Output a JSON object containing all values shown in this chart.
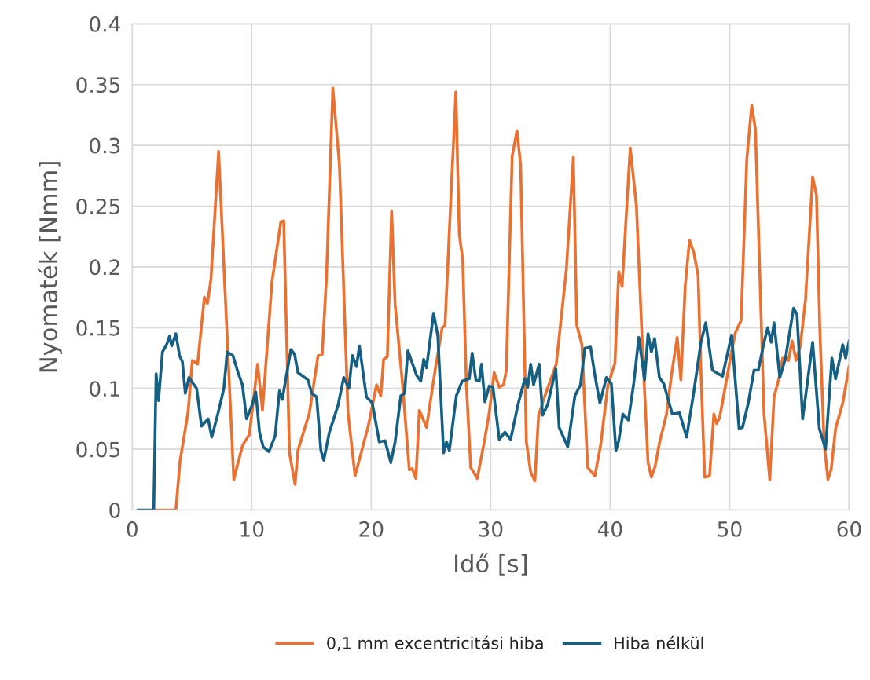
{
  "chart_data": {
    "type": "line",
    "xlabel": "Idő [s]",
    "ylabel": "Nyomaték [Nmm]",
    "xlim": [
      0,
      60
    ],
    "xticks": [
      0,
      10,
      20,
      30,
      40,
      50,
      60
    ],
    "ylim": [
      0,
      0.4
    ],
    "yticks": [
      0,
      0.05,
      0.1,
      0.15,
      0.2,
      0.25,
      0.3,
      0.35,
      0.4
    ],
    "grid": true,
    "legend": "bottom",
    "marker": "none",
    "line_style": "solid",
    "series": [
      {
        "name": "0,1 mm excentricitási hiba",
        "color": "#e97132",
        "x": [
          1.9,
          3.65,
          4.0,
          4.68,
          5.03,
          5.47,
          6.04,
          6.3,
          6.59,
          7.23,
          8.5,
          9.2,
          9.34,
          9.8,
          10.5,
          10.9,
          11.7,
          12.44,
          12.68,
          13.16,
          13.63,
          13.87,
          14.83,
          15.55,
          15.9,
          16.26,
          16.79,
          17.34,
          18.06,
          18.65,
          19.37,
          19.73,
          20.45,
          20.8,
          21.04,
          21.35,
          21.71,
          22.0,
          22.6,
          23.19,
          23.43,
          23.74,
          24.03,
          24.63,
          25.35,
          25.94,
          26.18,
          26.66,
          27.09,
          27.37,
          27.66,
          27.97,
          28.33,
          28.88,
          29.52,
          29.88,
          30.29,
          30.72,
          31.08,
          31.31,
          31.8,
          32.2,
          32.51,
          32.99,
          33.35,
          33.7,
          34.01,
          34.54,
          35.49,
          36.33,
          36.92,
          37.21,
          37.64,
          38.12,
          38.72,
          39.2,
          39.8,
          40.4,
          40.72,
          41.0,
          41.68,
          42.2,
          42.69,
          43.17,
          43.45,
          43.77,
          44.12,
          44.72,
          45.13,
          45.61,
          45.92,
          46.28,
          46.64,
          47.0,
          47.36,
          47.6,
          47.91,
          48.32,
          48.68,
          48.92,
          49.16,
          49.52,
          50.12,
          50.48,
          50.96,
          51.44,
          51.85,
          52.16,
          52.52,
          52.88,
          53.36,
          53.72,
          54.2,
          54.44,
          54.92,
          55.23,
          55.56,
          55.92,
          56.35,
          56.95,
          57.27,
          57.55,
          57.91,
          58.23,
          58.51,
          58.87,
          59.47,
          60.0
        ],
        "values": [
          0,
          0,
          0.04,
          0.081,
          0.123,
          0.12,
          0.175,
          0.17,
          0.19,
          0.295,
          0.025,
          0.052,
          0.055,
          0.062,
          0.12,
          0.082,
          0.188,
          0.237,
          0.238,
          0.047,
          0.021,
          0.049,
          0.08,
          0.127,
          0.128,
          0.192,
          0.347,
          0.284,
          0.08,
          0.028,
          0.055,
          0.068,
          0.103,
          0.094,
          0.124,
          0.126,
          0.246,
          0.169,
          0.106,
          0.033,
          0.034,
          0.026,
          0.082,
          0.068,
          0.115,
          0.15,
          0.152,
          0.255,
          0.344,
          0.227,
          0.206,
          0.103,
          0.035,
          0.026,
          0.059,
          0.08,
          0.113,
          0.101,
          0.103,
          0.115,
          0.291,
          0.312,
          0.284,
          0.056,
          0.031,
          0.024,
          0.078,
          0.094,
          0.12,
          0.197,
          0.29,
          0.152,
          0.136,
          0.035,
          0.028,
          0.053,
          0.102,
          0.121,
          0.196,
          0.184,
          0.298,
          0.25,
          0.137,
          0.039,
          0.027,
          0.036,
          0.055,
          0.079,
          0.111,
          0.142,
          0.107,
          0.184,
          0.222,
          0.212,
          0.193,
          0.114,
          0.027,
          0.028,
          0.079,
          0.071,
          0.076,
          0.095,
          0.128,
          0.146,
          0.156,
          0.289,
          0.333,
          0.313,
          0.196,
          0.079,
          0.025,
          0.093,
          0.111,
          0.125,
          0.123,
          0.139,
          0.123,
          0.135,
          0.173,
          0.274,
          0.259,
          0.149,
          0.055,
          0.025,
          0.034,
          0.067,
          0.088,
          0.118
        ]
      },
      {
        "name": "Hiba nélkül",
        "color": "#156082",
        "x": [
          0.5,
          1.8,
          2.0,
          2.2,
          2.53,
          2.88,
          3.12,
          3.31,
          3.65,
          3.96,
          4.2,
          4.44,
          4.75,
          5.03,
          5.39,
          5.8,
          6.35,
          6.66,
          7.19,
          7.67,
          7.95,
          8.43,
          8.86,
          9.22,
          9.57,
          10.05,
          10.34,
          10.65,
          10.96,
          11.44,
          11.96,
          12.32,
          12.56,
          13.28,
          13.59,
          13.87,
          14.71,
          15.02,
          15.43,
          15.79,
          16.03,
          16.5,
          17.22,
          17.7,
          18.13,
          18.42,
          18.77,
          19.01,
          19.6,
          20.09,
          20.68,
          21.16,
          21.64,
          22.0,
          22.48,
          22.79,
          23.07,
          23.79,
          24.15,
          24.39,
          24.63,
          25.22,
          25.58,
          26.06,
          26.3,
          26.54,
          27.13,
          27.61,
          28.21,
          28.45,
          28.76,
          29.04,
          29.23,
          29.52,
          29.88,
          30.19,
          30.72,
          31.19,
          31.67,
          32.27,
          32.86,
          33.1,
          33.35,
          33.59,
          34.06,
          34.35,
          34.78,
          35.45,
          35.73,
          36.45,
          37.05,
          37.52,
          37.88,
          38.36,
          38.72,
          39.14,
          39.69,
          40.1,
          40.48,
          40.72,
          41.06,
          41.53,
          41.97,
          42.4,
          42.88,
          43.17,
          43.45,
          43.72,
          44.12,
          44.48,
          45.2,
          45.8,
          46.4,
          47.0,
          47.6,
          48.0,
          48.56,
          49.4,
          50.17,
          50.79,
          51.08,
          51.56,
          52.04,
          52.4,
          52.88,
          53.19,
          53.48,
          53.72,
          54.2,
          54.68,
          55.35,
          55.64,
          56.11,
          56.95,
          57.51,
          58.03,
          58.56,
          58.87,
          59.47,
          59.71,
          60.0
        ],
        "values": [
          0,
          0,
          0.112,
          0.09,
          0.13,
          0.136,
          0.143,
          0.135,
          0.145,
          0.127,
          0.122,
          0.096,
          0.109,
          0.105,
          0.1,
          0.069,
          0.075,
          0.06,
          0.08,
          0.1,
          0.13,
          0.127,
          0.113,
          0.103,
          0.075,
          0.087,
          0.097,
          0.064,
          0.052,
          0.048,
          0.061,
          0.098,
          0.091,
          0.132,
          0.128,
          0.113,
          0.107,
          0.096,
          0.093,
          0.049,
          0.041,
          0.064,
          0.086,
          0.109,
          0.1,
          0.127,
          0.118,
          0.135,
          0.093,
          0.088,
          0.056,
          0.057,
          0.039,
          0.056,
          0.094,
          0.096,
          0.131,
          0.111,
          0.106,
          0.124,
          0.117,
          0.162,
          0.143,
          0.047,
          0.056,
          0.049,
          0.094,
          0.106,
          0.108,
          0.129,
          0.107,
          0.106,
          0.12,
          0.089,
          0.102,
          0.101,
          0.058,
          0.064,
          0.058,
          0.086,
          0.108,
          0.101,
          0.12,
          0.103,
          0.12,
          0.078,
          0.087,
          0.116,
          0.068,
          0.052,
          0.094,
          0.103,
          0.133,
          0.134,
          0.111,
          0.088,
          0.109,
          0.104,
          0.049,
          0.057,
          0.079,
          0.074,
          0.104,
          0.142,
          0.107,
          0.145,
          0.13,
          0.141,
          0.109,
          0.104,
          0.079,
          0.08,
          0.06,
          0.097,
          0.138,
          0.154,
          0.115,
          0.11,
          0.144,
          0.067,
          0.068,
          0.088,
          0.115,
          0.115,
          0.138,
          0.15,
          0.138,
          0.154,
          0.109,
          0.125,
          0.166,
          0.161,
          0.075,
          0.138,
          0.067,
          0.05,
          0.125,
          0.108,
          0.136,
          0.125,
          0.139
        ]
      }
    ]
  }
}
